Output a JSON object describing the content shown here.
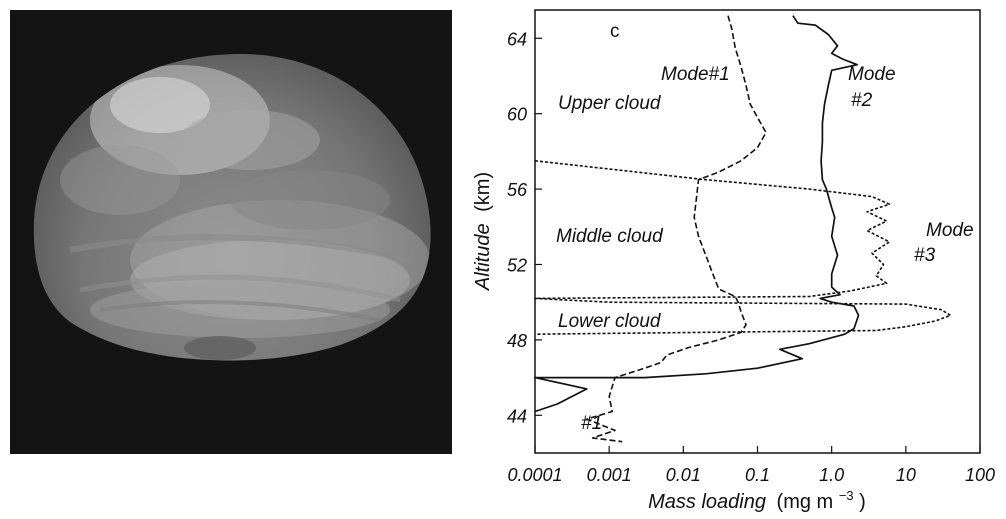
{
  "image": {
    "subject": "Venus",
    "background_color": "#141414"
  },
  "chart_data": {
    "type": "line",
    "panel_label": "c",
    "xlabel_main": "Mass loading",
    "xlabel_units": "(mg m",
    "xlabel_exp": "−3",
    "xlabel_close": ")",
    "ylabel_main": "Altitude",
    "ylabel_units": "(km)",
    "x_scale": "log",
    "xlim": [
      0.0001,
      100
    ],
    "ylim": [
      42,
      65.5
    ],
    "x_ticks": [
      {
        "value": 0.0001,
        "label": "0.0001"
      },
      {
        "value": 0.001,
        "label": "0.001"
      },
      {
        "value": 0.01,
        "label": "0.01"
      },
      {
        "value": 0.1,
        "label": "0.1"
      },
      {
        "value": 1,
        "label": "1.0"
      },
      {
        "value": 10,
        "label": "10"
      },
      {
        "value": 100,
        "label": "100"
      }
    ],
    "y_ticks": [
      {
        "value": 44,
        "label": "44"
      },
      {
        "value": 48,
        "label": "48"
      },
      {
        "value": 52,
        "label": "52"
      },
      {
        "value": 56,
        "label": "56"
      },
      {
        "value": 60,
        "label": "60"
      },
      {
        "value": 64,
        "label": "64"
      }
    ],
    "region_labels": {
      "upper": "Upper cloud",
      "middle": "Middle cloud",
      "lower": "Lower cloud"
    },
    "mode_labels": {
      "mode1_top": "Mode#1",
      "mode2_a": "Mode",
      "mode2_b": "#2",
      "mode3_a": "Mode",
      "mode3_b": "#3",
      "mode1_bottom": "#1"
    },
    "series": [
      {
        "style": "dashed",
        "color": "#111111",
        "points": [
          [
            0.04,
            65.2
          ],
          [
            0.045,
            64.5
          ],
          [
            0.05,
            63.5
          ],
          [
            0.06,
            62.5
          ],
          [
            0.07,
            61.5
          ],
          [
            0.08,
            60.5
          ],
          [
            0.1,
            59.8
          ],
          [
            0.13,
            59.0
          ],
          [
            0.1,
            58.2
          ],
          [
            0.06,
            57.5
          ],
          [
            0.03,
            56.9
          ],
          [
            0.016,
            56.5
          ],
          [
            0.015,
            55.5
          ],
          [
            0.014,
            54.5
          ],
          [
            0.016,
            53.5
          ],
          [
            0.02,
            52.5
          ],
          [
            0.025,
            51.5
          ],
          [
            0.03,
            50.7
          ],
          [
            0.05,
            50.3
          ],
          [
            0.055,
            50.0
          ],
          [
            0.06,
            49.5
          ],
          [
            0.07,
            48.8
          ],
          [
            0.06,
            48.4
          ],
          [
            0.03,
            48.0
          ],
          [
            0.012,
            47.6
          ],
          [
            0.006,
            47.2
          ],
          [
            0.005,
            46.8
          ],
          [
            0.003,
            46.5
          ],
          [
            0.0012,
            46.0
          ],
          [
            0.001,
            45.0
          ],
          [
            0.0011,
            44.2
          ],
          [
            0.0005,
            43.8
          ],
          [
            0.0012,
            43.2
          ],
          [
            0.0006,
            42.8
          ],
          [
            0.0015,
            42.6
          ]
        ]
      },
      {
        "style": "solid",
        "color": "#111111",
        "points": [
          [
            0.3,
            65.2
          ],
          [
            0.35,
            64.8
          ],
          [
            0.6,
            64.7
          ],
          [
            0.9,
            64.2
          ],
          [
            1.2,
            63.6
          ],
          [
            1.0,
            63.2
          ],
          [
            1.4,
            62.9
          ],
          [
            2.2,
            62.6
          ],
          [
            1.0,
            62.3
          ],
          [
            0.9,
            61.5
          ],
          [
            0.8,
            60.5
          ],
          [
            0.75,
            59.5
          ],
          [
            0.75,
            58.5
          ],
          [
            0.72,
            57.5
          ],
          [
            0.75,
            56.5
          ],
          [
            0.85,
            56.0
          ],
          [
            1.0,
            55.0
          ],
          [
            1.1,
            54.5
          ],
          [
            1.0,
            53.5
          ],
          [
            1.2,
            52.5
          ],
          [
            1.0,
            51.5
          ],
          [
            1.0,
            50.8
          ],
          [
            1.3,
            50.4
          ],
          [
            0.7,
            50.2
          ],
          [
            1.0,
            50.0
          ],
          [
            2.0,
            49.8
          ],
          [
            2.3,
            49.3
          ],
          [
            2.0,
            48.6
          ],
          [
            1.5,
            48.3
          ],
          [
            0.5,
            47.8
          ],
          [
            0.2,
            47.5
          ],
          [
            0.4,
            47.0
          ],
          [
            0.1,
            46.5
          ],
          [
            0.02,
            46.2
          ],
          [
            0.003,
            46.0
          ],
          [
            0.0001,
            46.0
          ],
          [
            0.0005,
            45.4
          ],
          [
            0.0002,
            44.6
          ],
          [
            0.0001,
            44.2
          ]
        ]
      },
      {
        "style": "dotted",
        "color": "#111111",
        "points": [
          [
            0.0001,
            57.5
          ],
          [
            0.02,
            56.5
          ],
          [
            0.5,
            56.0
          ],
          [
            3.5,
            55.6
          ],
          [
            6.0,
            55.2
          ],
          [
            3.0,
            54.8
          ],
          [
            5.5,
            54.3
          ],
          [
            3.0,
            53.8
          ],
          [
            6.0,
            53.2
          ],
          [
            3.5,
            52.6
          ],
          [
            5.0,
            52.0
          ],
          [
            4.0,
            51.4
          ],
          [
            5.5,
            51.0
          ],
          [
            1.8,
            50.6
          ],
          [
            0.5,
            50.3
          ],
          [
            0.0001,
            50.2
          ],
          [
            0.001,
            50.0
          ],
          [
            10.0,
            49.9
          ],
          [
            30.0,
            49.6
          ],
          [
            40.0,
            49.3
          ],
          [
            25.0,
            49.0
          ],
          [
            10.0,
            48.7
          ],
          [
            4.0,
            48.5
          ],
          [
            0.0001,
            48.3
          ]
        ]
      }
    ]
  }
}
